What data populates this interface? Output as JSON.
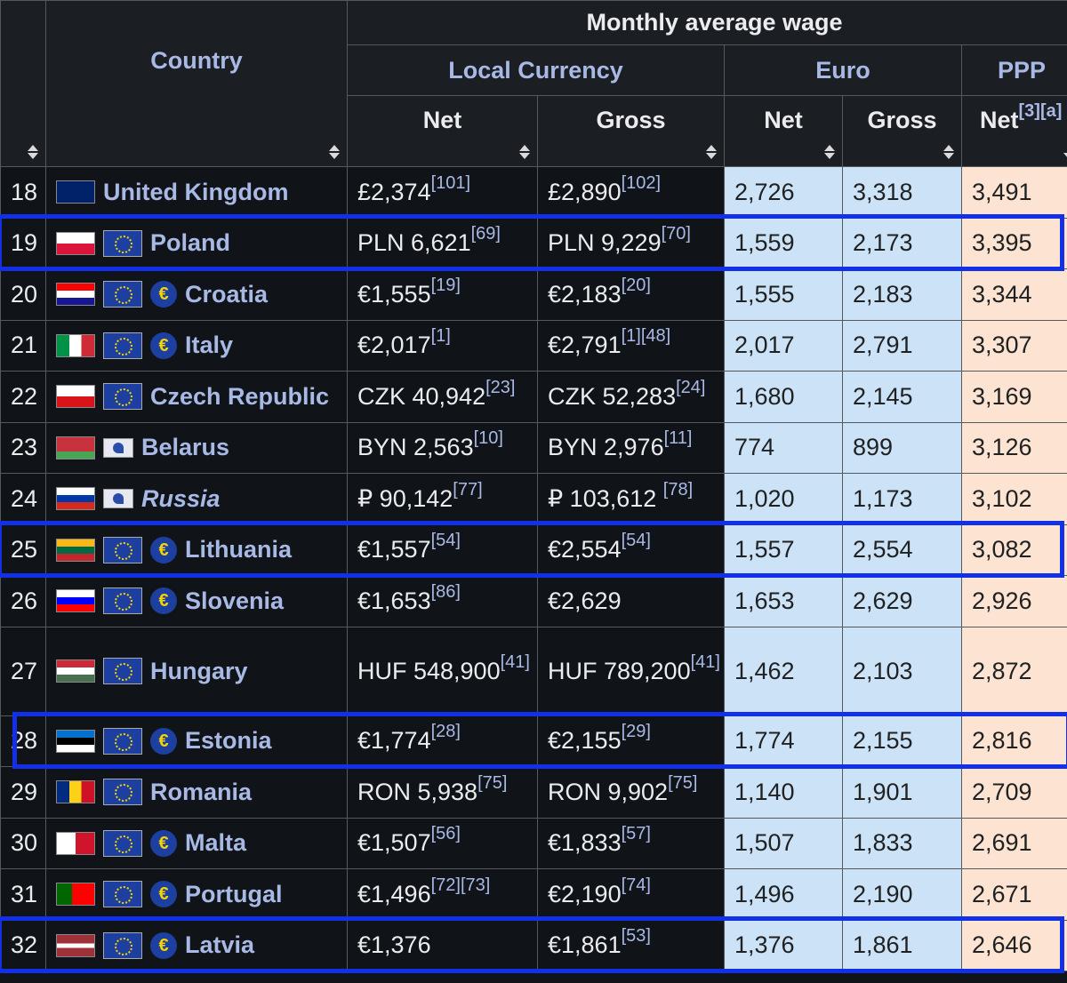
{
  "header": {
    "top_group": "Monthly average wage",
    "country": "Country",
    "local_currency": "Local Currency",
    "euro": "Euro",
    "ppp": "PPP",
    "net": "Net",
    "gross": "Gross",
    "ppp_net": "Net",
    "ppp_net_refs": "[3][a]"
  },
  "rows": [
    {
      "rank": "18",
      "name": "United Kingdom",
      "flag": "uk",
      "eu": false,
      "euro_member": false,
      "eaeu": false,
      "italic": false,
      "local_net": "£2,374",
      "local_net_ref": "[101]",
      "local_gross": "£2,890",
      "local_gross_ref": "[102]",
      "euro_net": "2,726",
      "euro_gross": "3,318",
      "ppp_net": "3,491"
    },
    {
      "rank": "19",
      "name": "Poland",
      "flag": "pl",
      "eu": true,
      "euro_member": false,
      "eaeu": false,
      "italic": false,
      "local_net": "PLN 6,621",
      "local_net_ref": "[69]",
      "local_gross": "PLN 9,229",
      "local_gross_ref": "[70]",
      "euro_net": "1,559",
      "euro_gross": "2,173",
      "ppp_net": "3,395"
    },
    {
      "rank": "20",
      "name": "Croatia",
      "flag": "hr",
      "eu": true,
      "euro_member": true,
      "eaeu": false,
      "italic": false,
      "local_net": "€1,555",
      "local_net_ref": "[19]",
      "local_gross": "€2,183",
      "local_gross_ref": "[20]",
      "euro_net": "1,555",
      "euro_gross": "2,183",
      "ppp_net": "3,344"
    },
    {
      "rank": "21",
      "name": "Italy",
      "flag": "it",
      "eu": true,
      "euro_member": true,
      "eaeu": false,
      "italic": false,
      "local_net": "€2,017",
      "local_net_ref": "[1]",
      "local_gross": "€2,791",
      "local_gross_ref": "[1][48]",
      "euro_net": "2,017",
      "euro_gross": "2,791",
      "ppp_net": "3,307"
    },
    {
      "rank": "22",
      "name": "Czech Republic",
      "flag": "cz",
      "eu": true,
      "euro_member": false,
      "eaeu": false,
      "italic": false,
      "local_net": "CZK 40,942",
      "local_net_ref": "[23]",
      "local_gross": "CZK 52,283",
      "local_gross_ref": "[24]",
      "euro_net": "1,680",
      "euro_gross": "2,145",
      "ppp_net": "3,169"
    },
    {
      "rank": "23",
      "name": "Belarus",
      "flag": "by",
      "eu": false,
      "euro_member": false,
      "eaeu": true,
      "italic": false,
      "local_net": "BYN 2,563",
      "local_net_ref": "[10]",
      "local_gross": "BYN 2,976",
      "local_gross_ref": "[11]",
      "euro_net": "774",
      "euro_gross": "899",
      "ppp_net": "3,126"
    },
    {
      "rank": "24",
      "name": "Russia",
      "flag": "ru",
      "eu": false,
      "euro_member": false,
      "eaeu": true,
      "italic": true,
      "local_net": "₽ 90,142",
      "local_net_ref": "[77]",
      "local_gross": "₽ 103,612 ",
      "local_gross_ref": "[78]",
      "euro_net": "1,020",
      "euro_gross": "1,173",
      "ppp_net": "3,102"
    },
    {
      "rank": "25",
      "name": "Lithuania",
      "flag": "lt",
      "eu": true,
      "euro_member": true,
      "eaeu": false,
      "italic": false,
      "local_net": "€1,557",
      "local_net_ref": "[54]",
      "local_gross": "€2,554",
      "local_gross_ref": "[54]",
      "euro_net": "1,557",
      "euro_gross": "2,554",
      "ppp_net": "3,082"
    },
    {
      "rank": "26",
      "name": "Slovenia",
      "flag": "si",
      "eu": true,
      "euro_member": true,
      "eaeu": false,
      "italic": false,
      "local_net": "€1,653",
      "local_net_ref": "[86]",
      "local_gross": "€2,629",
      "local_gross_ref": "",
      "euro_net": "1,653",
      "euro_gross": "2,629",
      "ppp_net": "2,926"
    },
    {
      "rank": "27",
      "name": "Hungary",
      "flag": "hu",
      "eu": true,
      "euro_member": false,
      "eaeu": false,
      "italic": false,
      "local_net": "HUF 548,900",
      "local_net_ref": "[41]",
      "local_gross": "HUF 789,200",
      "local_gross_ref": "[41]",
      "euro_net": "1,462",
      "euro_gross": "2,103",
      "ppp_net": "2,872",
      "wrap": true
    },
    {
      "rank": "28",
      "name": "Estonia",
      "flag": "ee",
      "eu": true,
      "euro_member": true,
      "eaeu": false,
      "italic": false,
      "local_net": "€1,774",
      "local_net_ref": "[28]",
      "local_gross": "€2,155",
      "local_gross_ref": "[29]",
      "euro_net": "1,774",
      "euro_gross": "2,155",
      "ppp_net": "2,816"
    },
    {
      "rank": "29",
      "name": "Romania",
      "flag": "ro",
      "eu": true,
      "euro_member": false,
      "eaeu": false,
      "italic": false,
      "local_net": "RON 5,938",
      "local_net_ref": "[75]",
      "local_gross": "RON 9,902",
      "local_gross_ref": "[75]",
      "euro_net": "1,140",
      "euro_gross": "1,901",
      "ppp_net": "2,709"
    },
    {
      "rank": "30",
      "name": "Malta",
      "flag": "mt",
      "eu": true,
      "euro_member": true,
      "eaeu": false,
      "italic": false,
      "local_net": "€1,507",
      "local_net_ref": "[56]",
      "local_gross": "€1,833",
      "local_gross_ref": "[57]",
      "euro_net": "1,507",
      "euro_gross": "1,833",
      "ppp_net": "2,691"
    },
    {
      "rank": "31",
      "name": "Portugal",
      "flag": "pt",
      "eu": true,
      "euro_member": true,
      "eaeu": false,
      "italic": false,
      "local_net": "€1,496",
      "local_net_ref": "[72][73]",
      "local_gross": "€2,190",
      "local_gross_ref": "[74]",
      "euro_net": "1,496",
      "euro_gross": "2,190",
      "ppp_net": "2,671"
    },
    {
      "rank": "32",
      "name": "Latvia",
      "flag": "lv",
      "eu": true,
      "euro_member": true,
      "eaeu": false,
      "italic": false,
      "local_net": "€1,376",
      "local_net_ref": "",
      "local_gross": "€1,861",
      "local_gross_ref": "[53]",
      "euro_net": "1,376",
      "euro_gross": "1,861",
      "ppp_net": "2,646"
    }
  ],
  "highlighted_ranks": [
    "19",
    "25",
    "28",
    "32"
  ],
  "colors": {
    "highlight": "#1230e8",
    "euro_bg": "#cce3f7",
    "ppp_bg": "#fce3d2",
    "link": "#a9b9e6"
  }
}
